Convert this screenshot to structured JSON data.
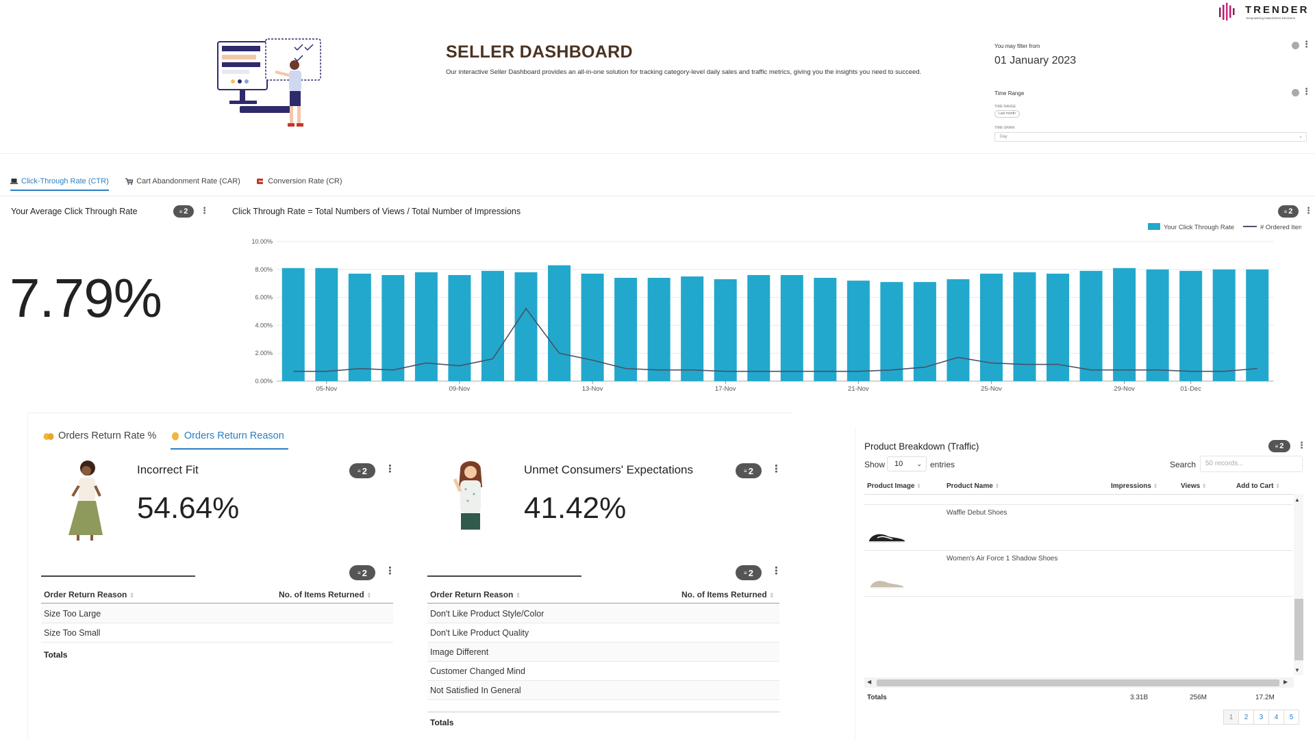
{
  "header": {
    "title": "SELLER DASHBOARD",
    "description": "Our interactive Seller Dashboard provides an all-in-one solution for tracking category-level daily sales and traffic metrics, giving you the insights you need to succeed.",
    "logo_text": "TRENDER",
    "logo_tagline": "Empowering Data-Driven Decisions",
    "filter_label": "You may filter from",
    "filter_value": "01 January 2023",
    "time_range_label": "Time Range",
    "time_range_sub": "TIME RANGE",
    "time_range_value": "Last month",
    "time_grain_sub": "TIME GRAIN",
    "time_grain_value": "Day"
  },
  "tabs_top": [
    {
      "label": "Click-Through Rate (CTR)",
      "icon": "laptop-icon",
      "active": true
    },
    {
      "label": "Cart Abandonment Rate (CAR)",
      "icon": "cart-icon",
      "active": false
    },
    {
      "label": "Conversion Rate (CR)",
      "icon": "conversion-icon",
      "active": false
    }
  ],
  "ctr": {
    "avg_title": "Your Average Click Through Rate",
    "avg_value": "7.79%",
    "badge": "2",
    "chart_title": "Click Through Rate = Total Numbers of Views / Total Number of Impressions"
  },
  "chart_data": {
    "type": "bar",
    "title": "Click Through Rate = Total Numbers of Views / Total Number of Impressions",
    "legend": [
      "Your Click Through Rate",
      "# Ordered Items"
    ],
    "legend_position": "top-right",
    "ylim": [
      0,
      10
    ],
    "yticks": [
      "0.00%",
      "2.00%",
      "4.00%",
      "6.00%",
      "8.00%",
      "10.00%"
    ],
    "xtick_labels": [
      "05-Nov",
      "09-Nov",
      "13-Nov",
      "17-Nov",
      "21-Nov",
      "25-Nov",
      "29-Nov",
      "01-Dec"
    ],
    "xtick_index": [
      1,
      5,
      9,
      13,
      17,
      21,
      25,
      27
    ],
    "grid": true,
    "colors": {
      "bar": "#22a8cc",
      "line": "#4a5068"
    },
    "series": [
      {
        "name": "Your Click Through Rate",
        "type": "bar",
        "values": [
          8.1,
          8.1,
          7.7,
          7.6,
          7.8,
          7.6,
          7.9,
          7.8,
          8.3,
          7.7,
          7.4,
          7.4,
          7.5,
          7.3,
          7.6,
          7.6,
          7.4,
          7.2,
          7.1,
          7.1,
          7.3,
          7.7,
          7.8,
          7.7,
          7.9,
          8.1,
          8.0,
          7.9,
          8.0,
          8.0
        ]
      },
      {
        "name": "# Ordered Items",
        "type": "line",
        "values": [
          0.7,
          0.7,
          0.9,
          0.8,
          1.3,
          1.1,
          1.6,
          5.2,
          2.0,
          1.5,
          0.9,
          0.8,
          0.8,
          0.7,
          0.7,
          0.7,
          0.7,
          0.7,
          0.8,
          1.0,
          1.7,
          1.3,
          1.2,
          1.2,
          0.8,
          0.8,
          0.8,
          0.7,
          0.7,
          0.9
        ]
      }
    ]
  },
  "tabs_low": [
    {
      "label": "Orders Return Rate %",
      "icon": "hands-icon",
      "active": false
    },
    {
      "label": "Orders Return Reason",
      "icon": "hand-icon",
      "active": true
    }
  ],
  "returns": {
    "badge": "2",
    "left": {
      "title": "Incorrect Fit",
      "value": "54.64%",
      "col1": "Order Return Reason",
      "col2": "No. of Items Returned",
      "rows": [
        "Size Too Large",
        "Size Too Small"
      ],
      "totals": "Totals"
    },
    "right": {
      "title": "Unmet Consumers' Expectations",
      "value": "41.42%",
      "col1": "Order Return Reason",
      "col2": "No. of Items Returned",
      "rows": [
        "Don't Like Product Style/Color",
        "Don't Like Product Quality",
        "Image Different",
        "Customer Changed Mind",
        "Not Satisfied In General"
      ],
      "totals": "Totals"
    }
  },
  "product": {
    "title": "Product Breakdown (Traffic)",
    "badge": "2",
    "show": "Show",
    "entries_value": "10",
    "entries": "entries",
    "search_label": "Search",
    "search_placeholder": "50 records...",
    "columns": [
      "Product Image",
      "Product Name",
      "Impressions",
      "Views",
      "Add to Cart"
    ],
    "rows": [
      {
        "name": "Waffle Debut Shoes",
        "shoe_color": "#222"
      },
      {
        "name": "Women's Air Force 1 Shadow Shoes",
        "shoe_color": "#c9bfae"
      }
    ],
    "totals_label": "Totals",
    "totals": {
      "impressions": "3.31B",
      "views": "256M",
      "add_to_cart": "17.2M"
    },
    "pages": [
      "1",
      "2",
      "3",
      "4",
      "5"
    ]
  }
}
